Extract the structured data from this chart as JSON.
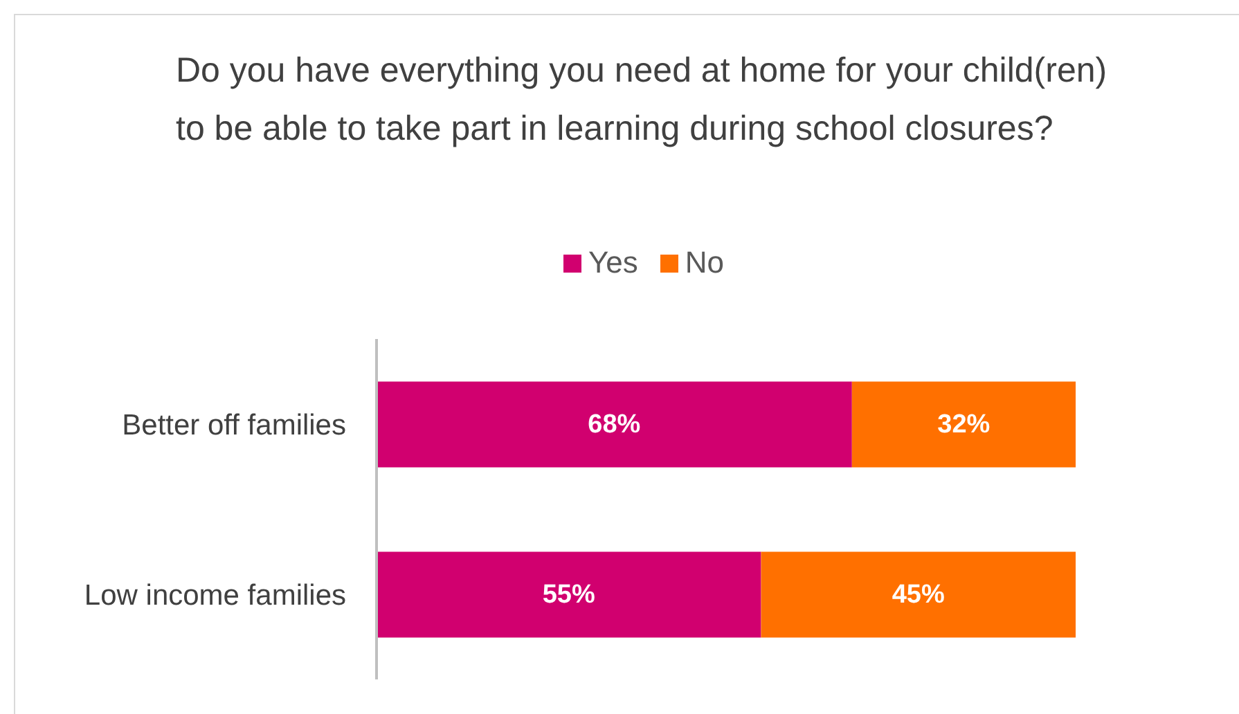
{
  "chart_data": {
    "type": "bar",
    "orientation": "horizontal",
    "stacked": true,
    "title": "Do you have everything you need at home for your child(ren) to be able to take part in learning during school closures?",
    "categories": [
      "Better off families",
      "Low income families"
    ],
    "series": [
      {
        "name": "Yes",
        "color": "#d1006f",
        "values": [
          68,
          55
        ],
        "value_labels": [
          "68%",
          "55%"
        ]
      },
      {
        "name": "No",
        "color": "#ff7000",
        "values": [
          32,
          45
        ],
        "value_labels": [
          "32%",
          "45%"
        ]
      }
    ],
    "legend": "top",
    "grid": false
  }
}
